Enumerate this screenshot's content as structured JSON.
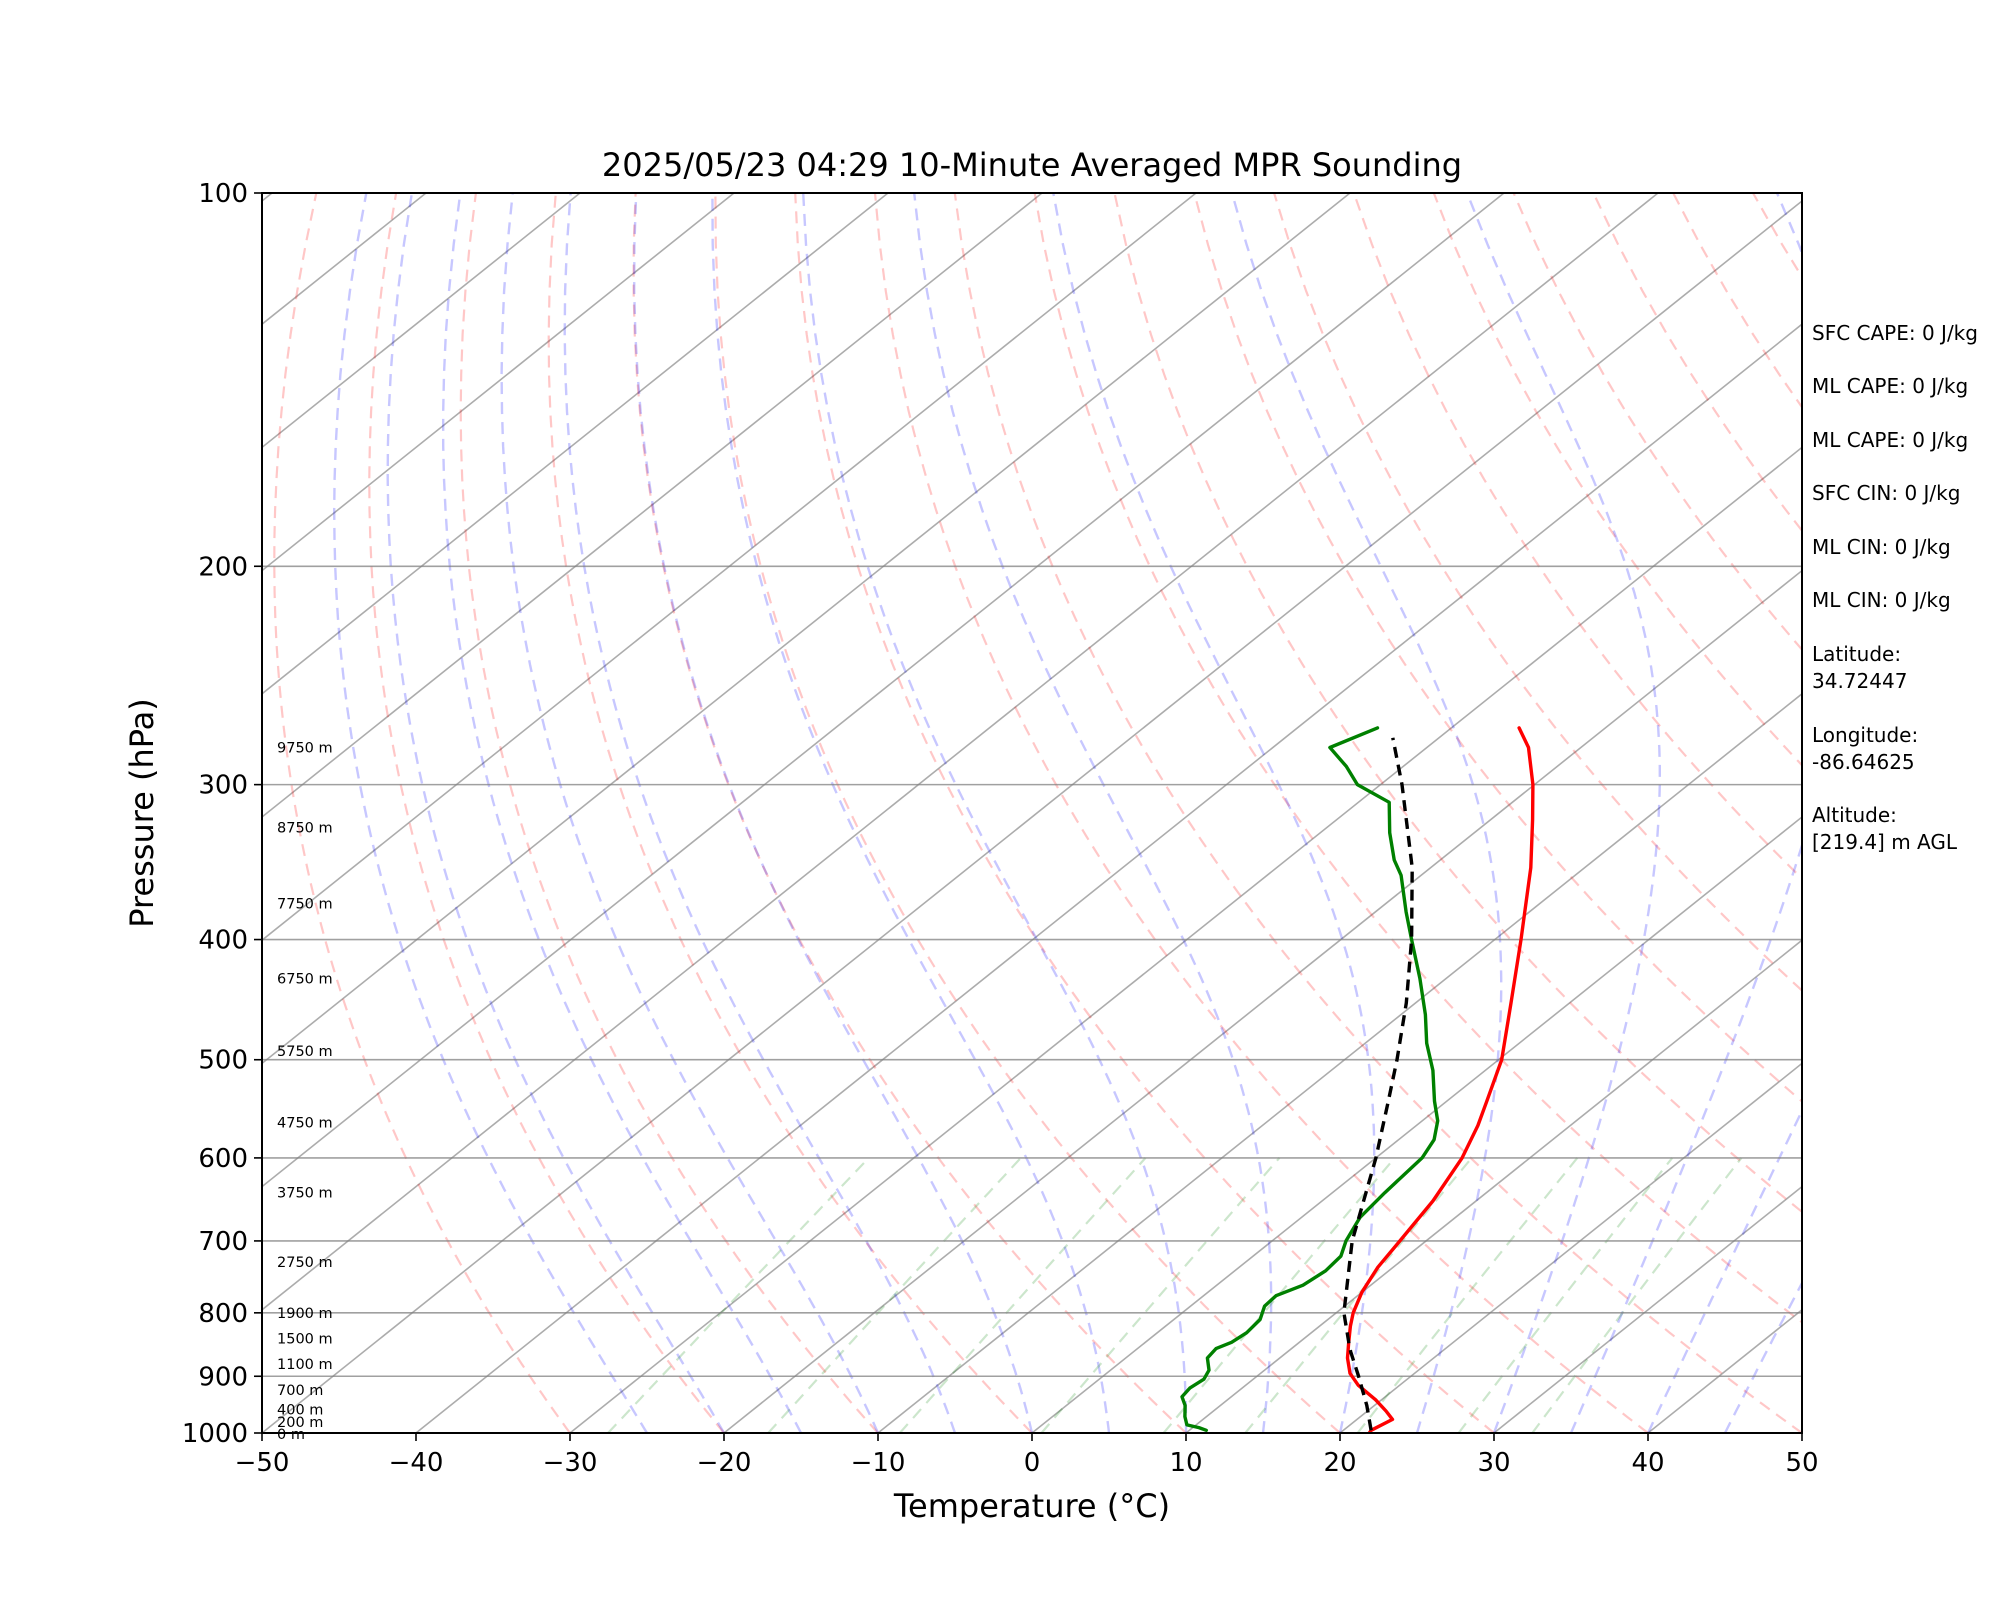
{
  "chart_data": {
    "type": "line",
    "title": "2025/05/23 04:29 10-Minute Averaged MPR Sounding",
    "xlabel": "Temperature (°C)",
    "ylabel": "Pressure (hPa)",
    "xlim": [
      -50,
      50
    ],
    "ylim": [
      1000,
      100
    ],
    "y_scale": "log",
    "skew": "skew-T log-p",
    "grid": true,
    "x_ticks": [
      "−50",
      "−40",
      "−30",
      "−20",
      "−10",
      "0",
      "10",
      "20",
      "30",
      "40",
      "50"
    ],
    "x_tick_values": [
      -50,
      -40,
      -30,
      -20,
      -10,
      0,
      10,
      20,
      30,
      40,
      50
    ],
    "y_ticks": [
      "100",
      "200",
      "300",
      "400",
      "500",
      "600",
      "700",
      "800",
      "900",
      "1000"
    ],
    "y_tick_values": [
      100,
      200,
      300,
      400,
      500,
      600,
      700,
      800,
      900,
      1000
    ],
    "height_labels": [
      {
        "text": "0 m",
        "p": 1002
      },
      {
        "text": "200 m",
        "p": 980
      },
      {
        "text": "400 m",
        "p": 957
      },
      {
        "text": "700 m",
        "p": 923
      },
      {
        "text": "1100 m",
        "p": 880
      },
      {
        "text": "1500 m",
        "p": 839
      },
      {
        "text": "1900 m",
        "p": 800
      },
      {
        "text": "2750 m",
        "p": 728
      },
      {
        "text": "3750 m",
        "p": 640
      },
      {
        "text": "4750 m",
        "p": 562
      },
      {
        "text": "5750 m",
        "p": 492
      },
      {
        "text": "6750 m",
        "p": 430
      },
      {
        "text": "7750 m",
        "p": 374
      },
      {
        "text": "8750 m",
        "p": 325
      },
      {
        "text": "9750 m",
        "p": 280
      }
    ],
    "series": [
      {
        "key": "temperature",
        "color": "#ff0000",
        "points": [
          [
            1000,
            21.9
          ],
          [
            995,
            21.8
          ],
          [
            975,
            22.3
          ],
          [
            960,
            21.2
          ],
          [
            940,
            19.6
          ],
          [
            915,
            17.3
          ],
          [
            895,
            15.8
          ],
          [
            870,
            14.4
          ],
          [
            845,
            13.2
          ],
          [
            820,
            12.0
          ],
          [
            800,
            11.1
          ],
          [
            770,
            10.0
          ],
          [
            735,
            9.0
          ],
          [
            700,
            8.3
          ],
          [
            650,
            7.2
          ],
          [
            600,
            5.6
          ],
          [
            565,
            4.0
          ],
          [
            540,
            2.6
          ],
          [
            500,
            0.2
          ],
          [
            450,
            -3.8
          ],
          [
            400,
            -8.3
          ],
          [
            350,
            -13.5
          ],
          [
            320,
            -17.3
          ],
          [
            300,
            -20.1
          ],
          [
            280,
            -23.4
          ],
          [
            270,
            -25.6
          ]
        ]
      },
      {
        "key": "dewpoint",
        "color": "#008000",
        "points": [
          [
            995,
            11.1
          ],
          [
            990,
            10.4
          ],
          [
            985,
            9.4
          ],
          [
            970,
            8.6
          ],
          [
            950,
            7.7
          ],
          [
            935,
            6.8
          ],
          [
            920,
            6.6
          ],
          [
            905,
            6.8
          ],
          [
            890,
            6.4
          ],
          [
            870,
            5.3
          ],
          [
            855,
            5.1
          ],
          [
            845,
            5.6
          ],
          [
            830,
            5.8
          ],
          [
            810,
            5.6
          ],
          [
            790,
            4.8
          ],
          [
            775,
            4.7
          ],
          [
            760,
            5.6
          ],
          [
            740,
            5.9
          ],
          [
            720,
            5.7
          ],
          [
            700,
            4.8
          ],
          [
            670,
            3.8
          ],
          [
            640,
            3.4
          ],
          [
            620,
            3.2
          ],
          [
            600,
            3.0
          ],
          [
            580,
            2.3
          ],
          [
            560,
            1.0
          ],
          [
            540,
            -0.8
          ],
          [
            510,
            -3.4
          ],
          [
            485,
            -6.0
          ],
          [
            460,
            -8.4
          ],
          [
            430,
            -11.7
          ],
          [
            400,
            -15.4
          ],
          [
            380,
            -18.0
          ],
          [
            355,
            -21.3
          ],
          [
            345,
            -23.0
          ],
          [
            328,
            -25.5
          ],
          [
            310,
            -28.0
          ],
          [
            300,
            -31.5
          ],
          [
            290,
            -33.7
          ],
          [
            280,
            -36.3
          ],
          [
            270,
            -34.8
          ]
        ]
      },
      {
        "key": "parcel",
        "color": "#000000",
        "dashed": true,
        "points": [
          [
            995,
            21.8
          ],
          [
            950,
            19.5
          ],
          [
            900,
            16.6
          ],
          [
            860,
            14.1
          ],
          [
            850,
            13.5
          ],
          [
            800,
            10.5
          ],
          [
            700,
            5.2
          ],
          [
            600,
            0.0
          ],
          [
            540,
            -3.8
          ],
          [
            500,
            -6.6
          ],
          [
            450,
            -10.6
          ],
          [
            400,
            -15.4
          ],
          [
            350,
            -21.2
          ],
          [
            300,
            -28.6
          ],
          [
            275,
            -33.0
          ]
        ]
      }
    ]
  },
  "indices": [
    {
      "text": "SFC CAPE: 0 J/kg"
    },
    {
      "text": "ML CAPE: 0 J/kg"
    },
    {
      "text": "ML CAPE: 0 J/kg"
    },
    {
      "text": "SFC CIN: 0 J/kg"
    },
    {
      "text": "ML CIN: 0 J/kg"
    },
    {
      "text": "ML CIN: 0 J/kg"
    }
  ],
  "location": {
    "latitude_label": "Latitude:",
    "latitude_value": "34.72447",
    "longitude_label": "Longitude:",
    "longitude_value": "-86.64625",
    "altitude_label": "Altitude:",
    "altitude_value": "[219.4] m AGL"
  },
  "style": {
    "dry_adiabat_color": "#ff0000",
    "moist_adiabat_color": "#0000ff",
    "mixing_ratio_color": "#008000",
    "isotherm_color": "#808080",
    "isobar_color": "#808080"
  }
}
